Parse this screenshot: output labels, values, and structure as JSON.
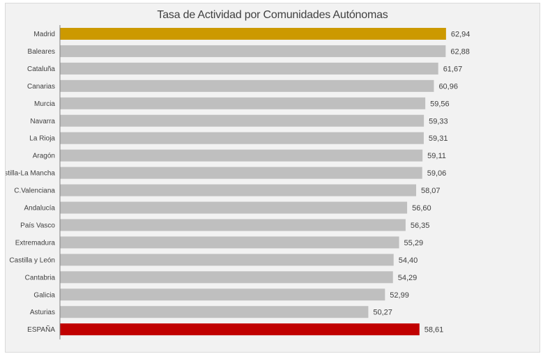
{
  "chart_data": {
    "type": "bar",
    "orientation": "horizontal",
    "title": "Tasa de Actividad  por Comunidades  Autónomas",
    "xlabel": "",
    "ylabel": "",
    "categories": [
      "Madrid",
      "Baleares",
      "Cataluña",
      "Canarias",
      "Murcia",
      "Navarra",
      "La Rioja",
      "Aragón",
      "Castilla-La Mancha",
      "C.Valenciana",
      "Andalucía",
      "País Vasco",
      "Extremadura",
      "Castilla y León",
      "Cantabria",
      "Galicia",
      "Asturias",
      "ESPAÑA"
    ],
    "values": [
      62.94,
      62.88,
      61.67,
      60.96,
      59.56,
      59.33,
      59.31,
      59.11,
      59.06,
      58.07,
      56.6,
      56.35,
      55.29,
      54.4,
      54.29,
      52.99,
      50.27,
      58.61
    ],
    "value_labels": [
      "62,94",
      "62,88",
      "61,67",
      "60,96",
      "59,56",
      "59,33",
      "59,31",
      "59,11",
      "59,06",
      "58,07",
      "56,60",
      "56,35",
      "55,29",
      "54,40",
      "54,29",
      "52,99",
      "50,27",
      "58,61"
    ],
    "colors": [
      "#cc9900",
      "#bfbfbf",
      "#bfbfbf",
      "#bfbfbf",
      "#bfbfbf",
      "#bfbfbf",
      "#bfbfbf",
      "#bfbfbf",
      "#bfbfbf",
      "#bfbfbf",
      "#bfbfbf",
      "#bfbfbf",
      "#bfbfbf",
      "#bfbfbf",
      "#bfbfbf",
      "#bfbfbf",
      "#bfbfbf",
      "#c00000"
    ],
    "xlim": [
      0,
      65
    ],
    "grid": false,
    "legend": "none"
  }
}
